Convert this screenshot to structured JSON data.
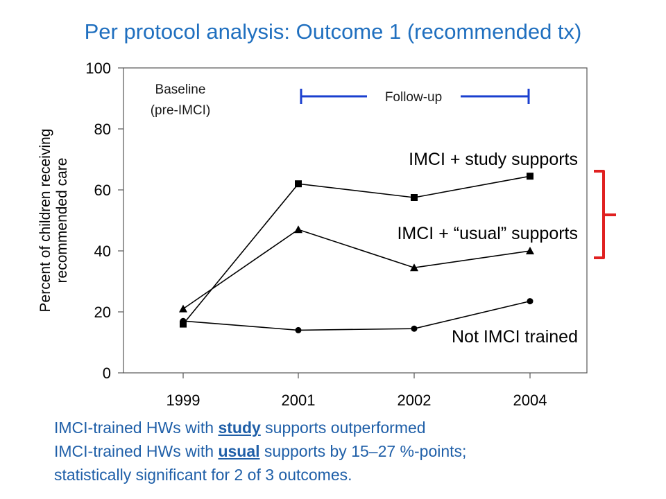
{
  "slide": {
    "title": "Per protocol analysis:  Outcome 1 (recommended tx)",
    "bullet_line1_pre": "IMCI-trained HWs with ",
    "bullet_line1_u": "study",
    "bullet_line1_post": " supports outperformed",
    "bullet_line2_pre": "IMCI-trained HWs with ",
    "bullet_line2_u": "usual",
    "bullet_line2_post": " supports by 15–27 %-points;",
    "bullet_line3": "statistically significant for 2 of 3 outcomes.",
    "colors": {
      "title": "#1f6fbf",
      "body_text": "#1f5fa8",
      "bracket": "#e02020",
      "follow_up_bar": "#1a3fcf"
    }
  },
  "chart_data": {
    "type": "line",
    "categories": [
      "1999",
      "2001",
      "2002",
      "2004"
    ],
    "ylim": [
      0,
      100
    ],
    "yticks": [
      0,
      20,
      40,
      60,
      80,
      100
    ],
    "ylabel_line1": "Percent of children receiving",
    "ylabel_line2": "recommended care",
    "xlabel": "",
    "grid": false,
    "series": [
      {
        "name": "IMCI + study supports",
        "marker": "square",
        "values": [
          16,
          62,
          57.5,
          64.5
        ]
      },
      {
        "name": "IMCI + “usual” supports",
        "marker": "triangle",
        "values": [
          21,
          47,
          34.5,
          40
        ]
      },
      {
        "name": "Not IMCI trained",
        "marker": "circle",
        "values": [
          17,
          14,
          14.5,
          23.5
        ]
      }
    ],
    "annotations": {
      "baseline_line1": "Baseline",
      "baseline_line2": "(pre-IMCI)",
      "follow_up": "Follow-up"
    }
  }
}
